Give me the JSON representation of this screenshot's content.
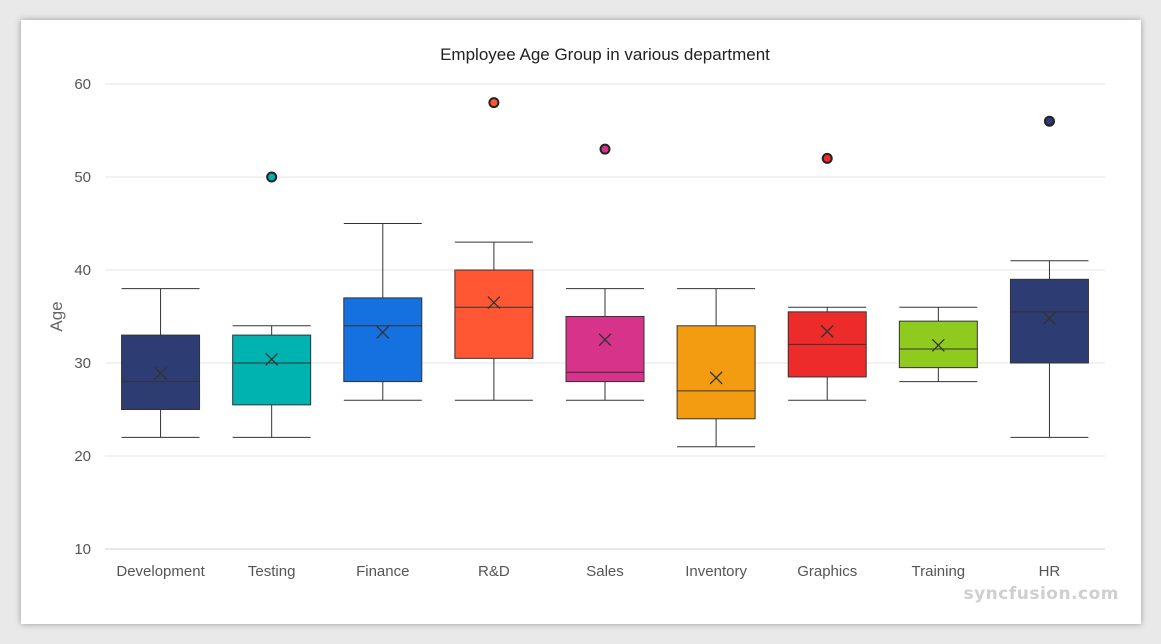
{
  "chart_data": {
    "type": "boxplot",
    "title": "Employee Age Group in various department",
    "ylabel": "Age",
    "ylim": [
      10,
      60
    ],
    "yticks": [
      10,
      20,
      30,
      40,
      50,
      60
    ],
    "grid": true,
    "legend": "none",
    "categories": [
      "Development",
      "Testing",
      "Finance",
      "R&D",
      "Sales",
      "Inventory",
      "Graphics",
      "Training",
      "HR"
    ],
    "colors": [
      "#2d3c73",
      "#00b3b0",
      "#1570e0",
      "#ff5733",
      "#d8338b",
      "#f39c12",
      "#ee2b2b",
      "#8fca1e",
      "#2d3c73"
    ],
    "boxes": [
      {
        "min": 22,
        "q1": 25,
        "median": 28,
        "q3": 33,
        "max": 38,
        "mean": 28.9,
        "outliers": []
      },
      {
        "min": 22,
        "q1": 25.5,
        "median": 30,
        "q3": 33,
        "max": 34,
        "mean": 30.4,
        "outliers": [
          50
        ]
      },
      {
        "min": 26,
        "q1": 28,
        "median": 34,
        "q3": 37,
        "max": 45,
        "mean": 33.3,
        "outliers": []
      },
      {
        "min": 26,
        "q1": 30.5,
        "median": 36,
        "q3": 40,
        "max": 43,
        "mean": 36.5,
        "outliers": [
          58
        ]
      },
      {
        "min": 26,
        "q1": 28,
        "median": 29,
        "q3": 35,
        "max": 38,
        "mean": 32.5,
        "outliers": [
          53
        ]
      },
      {
        "min": 21,
        "q1": 24,
        "median": 27,
        "q3": 34,
        "max": 38,
        "mean": 28.4,
        "outliers": []
      },
      {
        "min": 26,
        "q1": 28.5,
        "median": 32,
        "q3": 35.5,
        "max": 36,
        "mean": 33.4,
        "outliers": [
          52
        ]
      },
      {
        "min": 28,
        "q1": 29.5,
        "median": 31.5,
        "q3": 34.5,
        "max": 36,
        "mean": 31.9,
        "outliers": []
      },
      {
        "min": 22,
        "q1": 30,
        "median": 35.5,
        "q3": 39,
        "max": 41,
        "mean": 34.8,
        "outliers": [
          56
        ]
      }
    ]
  },
  "watermark": "syncfusion.com"
}
